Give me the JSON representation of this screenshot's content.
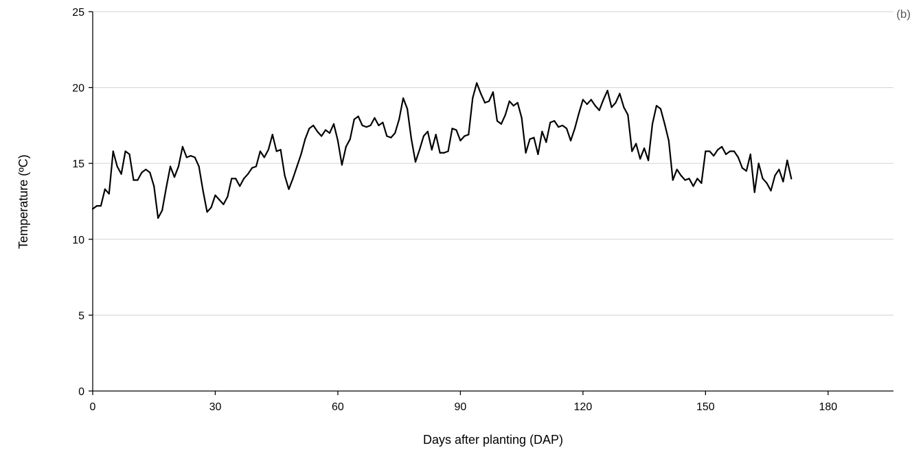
{
  "chart_data": {
    "type": "line",
    "panel_label": "(b)",
    "xlabel": "Days after planting (DAP)",
    "ylabel": "Temperature (ºC)",
    "xlim": [
      0,
      196
    ],
    "ylim": [
      0,
      25
    ],
    "xticks": [
      0,
      30,
      60,
      90,
      120,
      150,
      180
    ],
    "yticks": [
      0,
      5,
      10,
      15,
      20,
      25
    ],
    "grid": "horizontal",
    "series": [
      {
        "color": "#000000",
        "x": [
          0,
          1,
          2,
          3,
          4,
          5,
          6,
          7,
          8,
          9,
          10,
          11,
          12,
          13,
          14,
          15,
          16,
          17,
          18,
          19,
          20,
          21,
          22,
          23,
          24,
          25,
          26,
          27,
          28,
          29,
          30,
          31,
          32,
          33,
          34,
          35,
          36,
          37,
          38,
          39,
          40,
          41,
          42,
          43,
          44,
          45,
          46,
          47,
          48,
          49,
          50,
          51,
          52,
          53,
          54,
          55,
          56,
          57,
          58,
          59,
          60,
          61,
          62,
          63,
          64,
          65,
          66,
          67,
          68,
          69,
          70,
          71,
          72,
          73,
          74,
          75,
          76,
          77,
          78,
          79,
          80,
          81,
          82,
          83,
          84,
          85,
          86,
          87,
          88,
          89,
          90,
          91,
          92,
          93,
          94,
          95,
          96,
          97,
          98,
          99,
          100,
          101,
          102,
          103,
          104,
          105,
          106,
          107,
          108,
          109,
          110,
          111,
          112,
          113,
          114,
          115,
          116,
          117,
          118,
          119,
          120,
          121,
          122,
          123,
          124,
          125,
          126,
          127,
          128,
          129,
          130,
          131,
          132,
          133,
          134,
          135,
          136,
          137,
          138,
          139,
          140,
          141,
          142,
          143,
          144,
          145,
          146,
          147,
          148,
          149,
          150,
          151,
          152,
          153,
          154,
          155,
          156,
          157,
          158,
          159,
          160,
          161,
          162,
          163,
          164,
          165,
          166,
          167,
          168,
          169,
          170,
          171
        ],
        "y": [
          12.0,
          12.2,
          12.2,
          13.3,
          13.0,
          15.8,
          14.8,
          14.3,
          15.8,
          15.6,
          13.9,
          13.9,
          14.4,
          14.6,
          14.4,
          13.5,
          11.4,
          11.9,
          13.4,
          14.8,
          14.1,
          14.8,
          16.1,
          15.4,
          15.5,
          15.4,
          14.8,
          13.2,
          11.8,
          12.1,
          12.9,
          12.6,
          12.3,
          12.8,
          14.0,
          14.0,
          13.5,
          14.0,
          14.3,
          14.7,
          14.8,
          15.8,
          15.4,
          15.9,
          16.9,
          15.8,
          15.9,
          14.2,
          13.3,
          14.0,
          14.8,
          15.6,
          16.6,
          17.3,
          17.5,
          17.1,
          16.8,
          17.2,
          17.0,
          17.6,
          16.5,
          14.9,
          16.1,
          16.6,
          17.9,
          18.1,
          17.5,
          17.4,
          17.5,
          18.0,
          17.5,
          17.7,
          16.8,
          16.7,
          17.0,
          17.9,
          19.3,
          18.6,
          16.6,
          15.1,
          15.9,
          16.8,
          17.1,
          15.9,
          16.9,
          15.7,
          15.7,
          15.8,
          17.3,
          17.2,
          16.5,
          16.8,
          16.9,
          19.3,
          20.3,
          19.6,
          19.0,
          19.1,
          19.7,
          17.8,
          17.6,
          18.2,
          19.1,
          18.8,
          19.0,
          18.0,
          15.7,
          16.6,
          16.7,
          15.6,
          17.1,
          16.4,
          17.7,
          17.8,
          17.4,
          17.5,
          17.3,
          16.5,
          17.3,
          18.3,
          19.2,
          18.9,
          19.2,
          18.8,
          18.5,
          19.2,
          19.8,
          18.7,
          19.0,
          19.6,
          18.7,
          18.2,
          15.8,
          16.3,
          15.3,
          16.0,
          15.2,
          17.6,
          18.8,
          18.6,
          17.6,
          16.5,
          13.9,
          14.6,
          14.2,
          13.9,
          14.0,
          13.5,
          14.0,
          13.7,
          15.8,
          15.8,
          15.5,
          15.9,
          16.1,
          15.6,
          15.8,
          15.8,
          15.4,
          14.7,
          14.5,
          15.6,
          13.1,
          15.0,
          14.0,
          13.7,
          13.2,
          14.2,
          14.6,
          13.8,
          15.2,
          14.0
        ]
      }
    ]
  }
}
